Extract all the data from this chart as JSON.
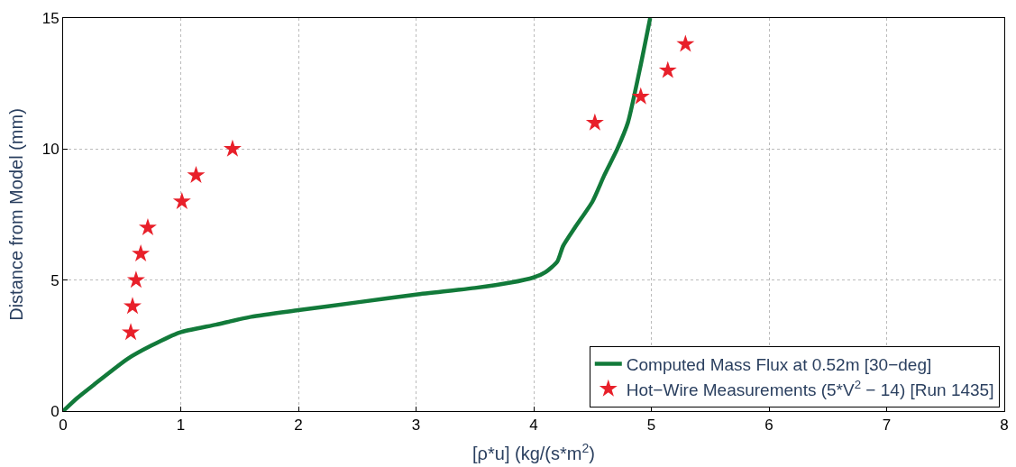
{
  "chart_data": {
    "type": "line",
    "xlabel": "[ρ*u] (kg/(s*m$^{2}$)",
    "ylabel": "Distance from Model (mm)",
    "xlim": [
      0,
      8
    ],
    "ylim": [
      0,
      15
    ],
    "xticks": [
      0,
      1,
      2,
      3,
      4,
      5,
      6,
      7,
      8
    ],
    "yticks": [
      0,
      5,
      10,
      15
    ],
    "grid": true,
    "legend": "bottom right",
    "series": [
      {
        "name": "Computed Mass Flux at 0.52m [30−deg]",
        "color": "#127a3a",
        "marker": "none",
        "line_style": "solid",
        "x": [
          0,
          0.12,
          0.26,
          0.55,
          0.75,
          0.99,
          1.3,
          1.6,
          2,
          2.5,
          3,
          3.5,
          3.8,
          4,
          4.1,
          4.2,
          4.25,
          4.35,
          4.5,
          4.6,
          4.71,
          4.8,
          4.9,
          4.99
        ],
        "values": [
          0,
          0.5,
          1,
          2,
          2.5,
          3,
          3.3,
          3.6,
          3.85,
          4.15,
          4.45,
          4.7,
          4.9,
          5.1,
          5.3,
          5.7,
          6.3,
          7,
          8,
          9,
          10,
          11,
          13,
          15
        ]
      },
      {
        "name": "Hot−Wire Measurements (5*V$^{2}$ − 14) [Run 1435]",
        "color": "#e8202a",
        "type": "scatter",
        "marker": "star",
        "x": [
          0.575,
          0.59,
          0.62,
          0.66,
          0.72,
          1.01,
          1.13,
          1.44,
          4.52,
          4.91,
          5.14,
          5.29
        ],
        "values": [
          3,
          4,
          5,
          6,
          7,
          8,
          9,
          10,
          11,
          12,
          13,
          14
        ]
      }
    ]
  }
}
